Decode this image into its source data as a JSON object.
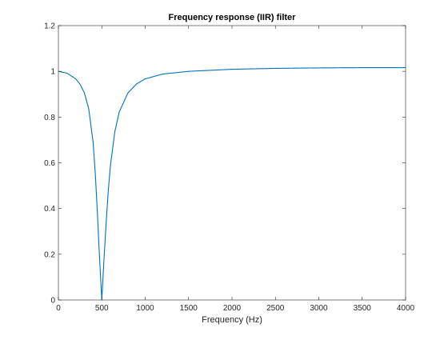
{
  "chart_data": {
    "type": "line",
    "title": "Frequency response (IIR) filter",
    "xlabel": "Frequency (Hz)",
    "ylabel": "",
    "xlim": [
      0,
      4000
    ],
    "ylim": [
      0,
      1.2
    ],
    "x_ticks": [
      0,
      500,
      1000,
      1500,
      2000,
      2500,
      3000,
      3500,
      4000
    ],
    "y_ticks": [
      0,
      0.2,
      0.4,
      0.6,
      0.8,
      1,
      1.2
    ],
    "grid": false,
    "box": true,
    "notch_frequency": 500,
    "series": [
      {
        "color": "#0072BD",
        "x": [
          0,
          100,
          200,
          250,
          300,
          350,
          400,
          425,
          450,
          470,
          480,
          490,
          495,
          500,
          505,
          510,
          520,
          530,
          550,
          575,
          600,
          650,
          700,
          800,
          900,
          1000,
          1200,
          1500,
          2000,
          2500,
          3000,
          3500,
          4000
        ],
        "y": [
          1.0,
          0.992,
          0.967,
          0.943,
          0.905,
          0.835,
          0.689,
          0.553,
          0.376,
          0.215,
          0.143,
          0.071,
          0.036,
          0.0,
          0.036,
          0.071,
          0.141,
          0.209,
          0.337,
          0.479,
          0.59,
          0.736,
          0.821,
          0.905,
          0.945,
          0.967,
          0.988,
          1.0,
          1.009,
          1.013,
          1.015,
          1.016,
          1.016
        ]
      }
    ]
  }
}
